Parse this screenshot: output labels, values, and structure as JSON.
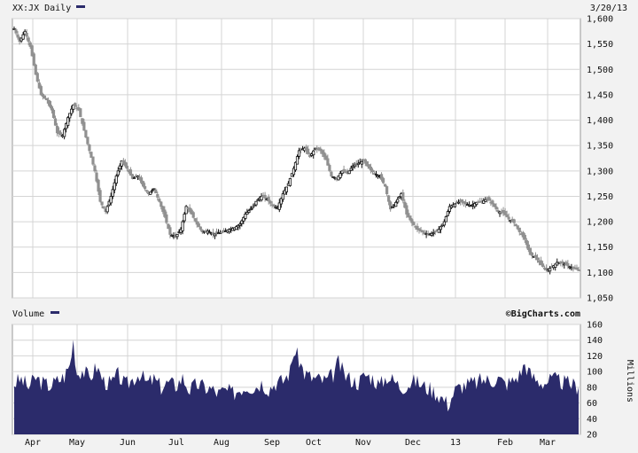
{
  "header": {
    "symbol_label": "XX:JX Daily",
    "date": "3/20/13",
    "legend_color": "#2b2b6b"
  },
  "volume_header": {
    "label": "Volume",
    "source": "©BigCharts.com"
  },
  "colors": {
    "background": "#f2f2f2",
    "plot_bg": "#ffffff",
    "grid": "#d4d4d4",
    "candle_up": "#111111",
    "candle_gray": "#909090",
    "volume": "#2b2b6b"
  },
  "chart_data": [
    {
      "type": "candlestick",
      "title": "XX:JX Daily",
      "x_labels": [
        "Apr",
        "May",
        "Jun",
        "Jul",
        "Aug",
        "Sep",
        "Oct",
        "Nov",
        "Dec",
        "13",
        "Feb",
        "Mar"
      ],
      "y_ticks": [
        "1,600",
        "1,550",
        "1,500",
        "1,450",
        "1,400",
        "1,350",
        "1,300",
        "1,250",
        "1,200",
        "1,150",
        "1,100",
        "1,050"
      ],
      "ylim": [
        1050,
        1600
      ],
      "grid": true,
      "series": [
        {
          "close_path": [
            [
              0,
              1580
            ],
            [
              3,
              1555
            ],
            [
              6,
              1575
            ],
            [
              9,
              1545
            ],
            [
              12,
              1490
            ],
            [
              15,
              1450
            ],
            [
              18,
              1440
            ],
            [
              21,
              1420
            ],
            [
              24,
              1375
            ],
            [
              27,
              1370
            ],
            [
              30,
              1405
            ],
            [
              33,
              1430
            ],
            [
              36,
              1420
            ],
            [
              39,
              1380
            ],
            [
              42,
              1340
            ],
            [
              45,
              1300
            ],
            [
              48,
              1240
            ],
            [
              51,
              1220
            ],
            [
              54,
              1250
            ],
            [
              57,
              1290
            ],
            [
              60,
              1320
            ],
            [
              63,
              1305
            ],
            [
              66,
              1285
            ],
            [
              69,
              1290
            ],
            [
              72,
              1270
            ],
            [
              75,
              1255
            ],
            [
              78,
              1265
            ],
            [
              81,
              1240
            ],
            [
              84,
              1210
            ],
            [
              87,
              1175
            ],
            [
              90,
              1170
            ],
            [
              93,
              1185
            ],
            [
              96,
              1230
            ],
            [
              99,
              1215
            ],
            [
              102,
              1195
            ],
            [
              105,
              1180
            ],
            [
              108,
              1182
            ],
            [
              111,
              1175
            ],
            [
              114,
              1178
            ],
            [
              117,
              1180
            ],
            [
              120,
              1185
            ],
            [
              123,
              1188
            ],
            [
              126,
              1195
            ],
            [
              129,
              1215
            ],
            [
              132,
              1225
            ],
            [
              135,
              1240
            ],
            [
              138,
              1250
            ],
            [
              141,
              1245
            ],
            [
              144,
              1232
            ],
            [
              147,
              1228
            ],
            [
              150,
              1255
            ],
            [
              153,
              1275
            ],
            [
              156,
              1305
            ],
            [
              159,
              1340
            ],
            [
              162,
              1345
            ],
            [
              165,
              1328
            ],
            [
              168,
              1345
            ],
            [
              171,
              1340
            ],
            [
              174,
              1322
            ],
            [
              177,
              1290
            ],
            [
              180,
              1285
            ],
            [
              183,
              1300
            ],
            [
              186,
              1295
            ],
            [
              189,
              1310
            ],
            [
              192,
              1315
            ],
            [
              195,
              1320
            ],
            [
              198,
              1305
            ],
            [
              201,
              1295
            ],
            [
              204,
              1290
            ],
            [
              207,
              1270
            ],
            [
              210,
              1225
            ],
            [
              213,
              1238
            ],
            [
              216,
              1255
            ],
            [
              219,
              1215
            ],
            [
              222,
              1198
            ],
            [
              225,
              1185
            ],
            [
              228,
              1180
            ],
            [
              231,
              1175
            ],
            [
              234,
              1178
            ],
            [
              237,
              1185
            ],
            [
              240,
              1200
            ],
            [
              243,
              1230
            ],
            [
              246,
              1235
            ],
            [
              249,
              1240
            ],
            [
              252,
              1235
            ],
            [
              255,
              1232
            ],
            [
              258,
              1238
            ],
            [
              261,
              1240
            ],
            [
              264,
              1245
            ],
            [
              267,
              1235
            ],
            [
              270,
              1220
            ],
            [
              273,
              1218
            ],
            [
              276,
              1205
            ],
            [
              279,
              1198
            ],
            [
              282,
              1180
            ],
            [
              285,
              1165
            ],
            [
              288,
              1135
            ],
            [
              291,
              1130
            ],
            [
              294,
              1115
            ],
            [
              297,
              1105
            ],
            [
              300,
              1110
            ],
            [
              303,
              1120
            ],
            [
              306,
              1118
            ],
            [
              309,
              1113
            ],
            [
              312,
              1108
            ],
            [
              315,
              1105
            ]
          ]
        }
      ]
    },
    {
      "type": "area",
      "title": "Volume",
      "ylabel": "Millions",
      "y_ticks": [
        "160",
        "140",
        "120",
        "100",
        "80",
        "60",
        "40",
        "20"
      ],
      "ylim": [
        20,
        160
      ],
      "grid": true,
      "series": [
        {
          "values": [
            [
              0,
              85
            ],
            [
              4,
              90
            ],
            [
              8,
              80
            ],
            [
              12,
              92
            ],
            [
              16,
              85
            ],
            [
              20,
              82
            ],
            [
              24,
              88
            ],
            [
              28,
              94
            ],
            [
              31,
              108
            ],
            [
              33,
              139
            ],
            [
              35,
              98
            ],
            [
              38,
              102
            ],
            [
              42,
              92
            ],
            [
              46,
              106
            ],
            [
              50,
              88
            ],
            [
              54,
              84
            ],
            [
              58,
              96
            ],
            [
              62,
              82
            ],
            [
              66,
              90
            ],
            [
              70,
              98
            ],
            [
              74,
              85
            ],
            [
              78,
              90
            ],
            [
              82,
              80
            ],
            [
              86,
              86
            ],
            [
              90,
              82
            ],
            [
              94,
              92
            ],
            [
              98,
              76
            ],
            [
              102,
              84
            ],
            [
              106,
              80
            ],
            [
              110,
              78
            ],
            [
              114,
              72
            ],
            [
              118,
              76
            ],
            [
              122,
              72
            ],
            [
              126,
              78
            ],
            [
              130,
              82
            ],
            [
              134,
              80
            ],
            [
              138,
              86
            ],
            [
              142,
              78
            ],
            [
              146,
              86
            ],
            [
              150,
              88
            ],
            [
              154,
              100
            ],
            [
              156,
              126
            ],
            [
              158,
              120
            ],
            [
              162,
              98
            ],
            [
              166,
              92
            ],
            [
              170,
              90
            ],
            [
              174,
              88
            ],
            [
              178,
              96
            ],
            [
              181,
              112
            ],
            [
              184,
              96
            ],
            [
              188,
              90
            ],
            [
              192,
              86
            ],
            [
              196,
              96
            ],
            [
              200,
              92
            ],
            [
              204,
              82
            ],
            [
              208,
              94
            ],
            [
              212,
              88
            ],
            [
              216,
              80
            ],
            [
              220,
              84
            ],
            [
              224,
              88
            ],
            [
              228,
              82
            ],
            [
              232,
              78
            ],
            [
              236,
              72
            ],
            [
              240,
              64
            ],
            [
              242,
              58
            ],
            [
              246,
              76
            ],
            [
              250,
              82
            ],
            [
              254,
              84
            ],
            [
              258,
              86
            ],
            [
              262,
              90
            ],
            [
              266,
              88
            ],
            [
              270,
              92
            ],
            [
              274,
              84
            ],
            [
              278,
              88
            ],
            [
              282,
              96
            ],
            [
              285,
              110
            ],
            [
              288,
              96
            ],
            [
              292,
              88
            ],
            [
              296,
              86
            ],
            [
              300,
              90
            ],
            [
              304,
              88
            ],
            [
              308,
              85
            ],
            [
              311,
              84
            ],
            [
              315,
              80
            ]
          ]
        }
      ]
    }
  ]
}
